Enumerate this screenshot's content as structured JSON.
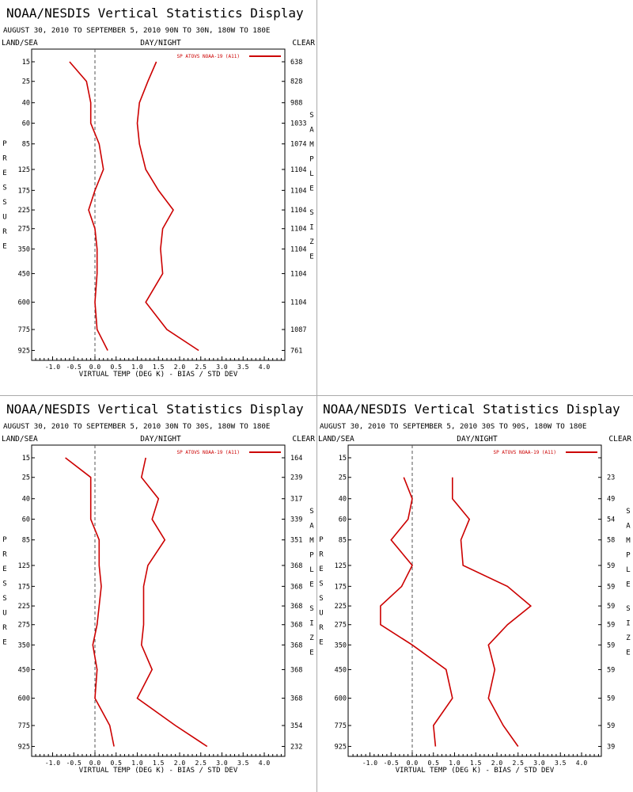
{
  "colors": {
    "series": "#cc0000",
    "axis": "#000000",
    "zero_line": "#555555"
  },
  "chart_data": [
    {
      "type": "line",
      "title": "NOAA/NESDIS Vertical Statistics Display",
      "subtitle": "AUGUST 30, 2010 TO SEPTEMBER 5, 2010  90N TO 30N, 180W TO 180E",
      "top_left": "LAND/SEA",
      "top_center": "DAY/NIGHT",
      "top_right": "CLEAR",
      "left_label": "PRESSURE",
      "right_label": "SAMPLE SIZE",
      "xlabel": "VIRTUAL TEMP (DEG K) - BIAS / STD DEV",
      "legend": "SP ATOVS NOAA-19 (A11)",
      "xlim": [
        -1.5,
        4.5
      ],
      "xticks": [
        "-1.0",
        "-0.5",
        "0.0",
        "0.5",
        "1.0",
        "1.5",
        "2.0",
        "2.5",
        "3.0",
        "3.5",
        "4.0"
      ],
      "pressure": [
        "15",
        "25",
        "40",
        "60",
        "85",
        "125",
        "175",
        "225",
        "275",
        "350",
        "450",
        "600",
        "775",
        "925"
      ],
      "sample_size": [
        "638",
        "828",
        "988",
        "1033",
        "1074",
        "1104",
        "1104",
        "1104",
        "1104",
        "1104",
        "1104",
        "1104",
        "1087",
        "761"
      ],
      "series": [
        {
          "name": "bias",
          "values": [
            -0.6,
            -0.2,
            -0.1,
            -0.1,
            0.1,
            0.2,
            0.0,
            -0.15,
            0.0,
            0.05,
            0.05,
            0.0,
            0.05,
            0.3
          ]
        },
        {
          "name": "std_dev",
          "values": [
            1.45,
            1.25,
            1.05,
            1.0,
            1.05,
            1.2,
            1.5,
            1.85,
            1.6,
            1.55,
            1.6,
            1.2,
            1.7,
            2.45
          ]
        }
      ]
    },
    {
      "type": "line",
      "title": "NOAA/NESDIS Vertical Statistics Display",
      "subtitle": "AUGUST 30, 2010 TO SEPTEMBER 5, 2010  30N TO 30S, 180W TO 180E",
      "top_left": "LAND/SEA",
      "top_center": "DAY/NIGHT",
      "top_right": "CLEAR",
      "left_label": "PRESSURE",
      "right_label": "SAMPLE SIZE",
      "xlabel": "VIRTUAL TEMP (DEG K) - BIAS / STD DEV",
      "legend": "SP ATOVS NOAA-19 (A11)",
      "xlim": [
        -1.5,
        4.5
      ],
      "xticks": [
        "-1.0",
        "-0.5",
        "0.0",
        "0.5",
        "1.0",
        "1.5",
        "2.0",
        "2.5",
        "3.0",
        "3.5",
        "4.0"
      ],
      "pressure": [
        "15",
        "25",
        "40",
        "60",
        "85",
        "125",
        "175",
        "225",
        "275",
        "350",
        "450",
        "600",
        "775",
        "925"
      ],
      "sample_size": [
        "164",
        "239",
        "317",
        "339",
        "351",
        "368",
        "368",
        "368",
        "368",
        "368",
        "368",
        "368",
        "354",
        "232"
      ],
      "series": [
        {
          "name": "bias",
          "values": [
            -0.7,
            -0.1,
            -0.1,
            -0.1,
            0.1,
            0.1,
            0.15,
            0.1,
            0.05,
            -0.05,
            0.05,
            0.0,
            0.35,
            0.45
          ]
        },
        {
          "name": "std_dev",
          "values": [
            1.2,
            1.1,
            1.5,
            1.35,
            1.65,
            1.25,
            1.15,
            1.15,
            1.15,
            1.1,
            1.35,
            1.0,
            1.9,
            2.65
          ]
        }
      ]
    },
    {
      "type": "line",
      "title": "NOAA/NESDIS Vertical Statistics Display",
      "subtitle": "AUGUST 30, 2010 TO SEPTEMBER 5, 2010  30S TO 90S, 180W TO 180E",
      "top_left": "LAND/SEA",
      "top_center": "DAY/NIGHT",
      "top_right": "CLEAR",
      "left_label": "PRESSURE",
      "right_label": "SAMPLE SIZE",
      "xlabel": "VIRTUAL TEMP (DEG K) - BIAS / STD DEV",
      "legend": "SP ATOVS NOAA-19 (A11)",
      "xlim": [
        -1.5,
        4.5
      ],
      "xticks": [
        "-1.0",
        "-0.5",
        "0.0",
        "0.5",
        "1.0",
        "1.5",
        "2.0",
        "2.5",
        "3.0",
        "3.5",
        "4.0"
      ],
      "pressure": [
        "15",
        "25",
        "40",
        "60",
        "85",
        "125",
        "175",
        "225",
        "275",
        "350",
        "450",
        "600",
        "775",
        "925"
      ],
      "sample_size": [
        "",
        "23",
        "49",
        "54",
        "58",
        "59",
        "59",
        "59",
        "59",
        "59",
        "59",
        "59",
        "59",
        "39"
      ],
      "series": [
        {
          "name": "bias",
          "values": [
            null,
            -0.2,
            0.0,
            -0.1,
            -0.5,
            0.0,
            -0.25,
            -0.75,
            -0.75,
            0.0,
            0.8,
            0.95,
            0.5,
            0.55
          ]
        },
        {
          "name": "std_dev",
          "values": [
            null,
            0.95,
            0.95,
            1.35,
            1.15,
            1.2,
            2.25,
            2.8,
            2.25,
            1.8,
            1.95,
            1.8,
            2.15,
            2.5
          ]
        }
      ]
    }
  ]
}
